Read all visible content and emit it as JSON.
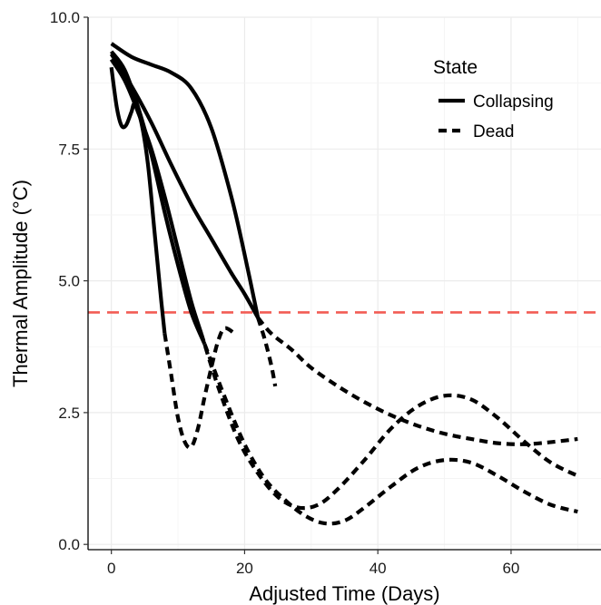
{
  "chart_data": {
    "type": "line",
    "xlabel": "Adjusted Time (Days)",
    "ylabel": "Thermal Amplitude (°C)",
    "xlim": [
      -3.5,
      73.5
    ],
    "ylim": [
      -0.1,
      10.0
    ],
    "x_ticks": [
      0,
      20,
      40,
      60
    ],
    "y_ticks": [
      0.0,
      2.5,
      5.0,
      7.5,
      10.0
    ],
    "x_tick_labels": [
      "0",
      "20",
      "40",
      "60"
    ],
    "y_tick_labels": [
      "0.0",
      "2.5",
      "5.0",
      "7.5",
      "10.0"
    ],
    "grid": true,
    "threshold": {
      "y": 4.4,
      "color": "#f25c54",
      "style": "dashed"
    },
    "legend": {
      "title": "State",
      "position": "top-right",
      "entries": [
        {
          "label": "Collapsing",
          "style": "solid"
        },
        {
          "label": "Dead",
          "style": "dashed"
        }
      ]
    },
    "series": [
      {
        "collapsing": [
          [
            0,
            9.5
          ],
          [
            3,
            9.25
          ],
          [
            6,
            9.1
          ],
          [
            9,
            8.95
          ],
          [
            12,
            8.65
          ],
          [
            15,
            7.9
          ],
          [
            18,
            6.6
          ],
          [
            20,
            5.5
          ],
          [
            22,
            4.3
          ]
        ],
        "dead": [
          [
            22,
            4.3
          ],
          [
            24,
            4.0
          ],
          [
            27,
            3.7
          ],
          [
            30,
            3.35
          ],
          [
            34,
            3.0
          ],
          [
            38,
            2.7
          ],
          [
            42,
            2.45
          ],
          [
            46,
            2.25
          ],
          [
            50,
            2.1
          ],
          [
            54,
            2.0
          ],
          [
            58,
            1.92
          ],
          [
            62,
            1.9
          ],
          [
            66,
            1.94
          ],
          [
            70,
            2.0
          ]
        ]
      },
      {
        "collapsing": [
          [
            0,
            9.3
          ],
          [
            3,
            8.7
          ],
          [
            6,
            8.0
          ],
          [
            9,
            7.2
          ],
          [
            12,
            6.45
          ],
          [
            15,
            5.8
          ],
          [
            18,
            5.15
          ],
          [
            20,
            4.75
          ],
          [
            22,
            4.3
          ]
        ],
        "dead": [
          [
            22,
            4.3
          ],
          [
            23,
            3.9
          ],
          [
            24,
            3.4
          ],
          [
            24.6,
            3.0
          ]
        ]
      },
      {
        "collapsing": [
          [
            0,
            9.05
          ],
          [
            0.8,
            8.3
          ],
          [
            1.5,
            7.95
          ],
          [
            2.2,
            7.95
          ],
          [
            3,
            8.2
          ],
          [
            3.5,
            8.35
          ],
          [
            4.5,
            8.0
          ],
          [
            5.5,
            7.2
          ],
          [
            6.5,
            5.9
          ],
          [
            7.5,
            4.6
          ],
          [
            8,
            4.0
          ]
        ],
        "dead": [
          [
            8,
            4.0
          ],
          [
            9,
            3.2
          ],
          [
            10,
            2.4
          ],
          [
            11,
            1.95
          ],
          [
            12,
            1.85
          ],
          [
            13,
            2.2
          ],
          [
            14,
            2.8
          ],
          [
            15,
            3.35
          ],
          [
            16,
            3.85
          ],
          [
            17,
            4.1
          ],
          [
            18.5,
            4.0
          ]
        ]
      },
      {
        "collapsing": [
          [
            0,
            9.2
          ],
          [
            2,
            8.8
          ],
          [
            4,
            8.2
          ],
          [
            6,
            7.5
          ],
          [
            8,
            6.6
          ],
          [
            10,
            5.6
          ],
          [
            12,
            4.6
          ],
          [
            13.5,
            4.0
          ]
        ],
        "dead": [
          [
            13.5,
            4.0
          ],
          [
            16,
            3.0
          ],
          [
            19,
            2.0
          ],
          [
            22,
            1.35
          ],
          [
            25,
            0.9
          ],
          [
            28,
            0.7
          ],
          [
            31,
            0.75
          ],
          [
            34,
            1.05
          ],
          [
            38,
            1.6
          ],
          [
            42,
            2.2
          ],
          [
            46,
            2.62
          ],
          [
            50,
            2.82
          ],
          [
            54,
            2.75
          ],
          [
            58,
            2.4
          ],
          [
            62,
            1.95
          ],
          [
            66,
            1.55
          ],
          [
            70,
            1.3
          ]
        ]
      },
      {
        "collapsing": [
          [
            0,
            9.35
          ],
          [
            2,
            9.0
          ],
          [
            4,
            8.3
          ],
          [
            6,
            7.4
          ],
          [
            8,
            6.3
          ],
          [
            10,
            5.3
          ],
          [
            12,
            4.4
          ],
          [
            14,
            3.8
          ]
        ],
        "dead": [
          [
            14,
            3.8
          ],
          [
            17,
            2.8
          ],
          [
            20,
            1.9
          ],
          [
            23,
            1.25
          ],
          [
            26,
            0.85
          ],
          [
            29,
            0.55
          ],
          [
            32,
            0.4
          ],
          [
            35,
            0.45
          ],
          [
            38,
            0.7
          ],
          [
            42,
            1.1
          ],
          [
            46,
            1.45
          ],
          [
            50,
            1.6
          ],
          [
            54,
            1.55
          ],
          [
            58,
            1.3
          ],
          [
            62,
            1.0
          ],
          [
            66,
            0.75
          ],
          [
            70,
            0.62
          ]
        ]
      }
    ]
  }
}
